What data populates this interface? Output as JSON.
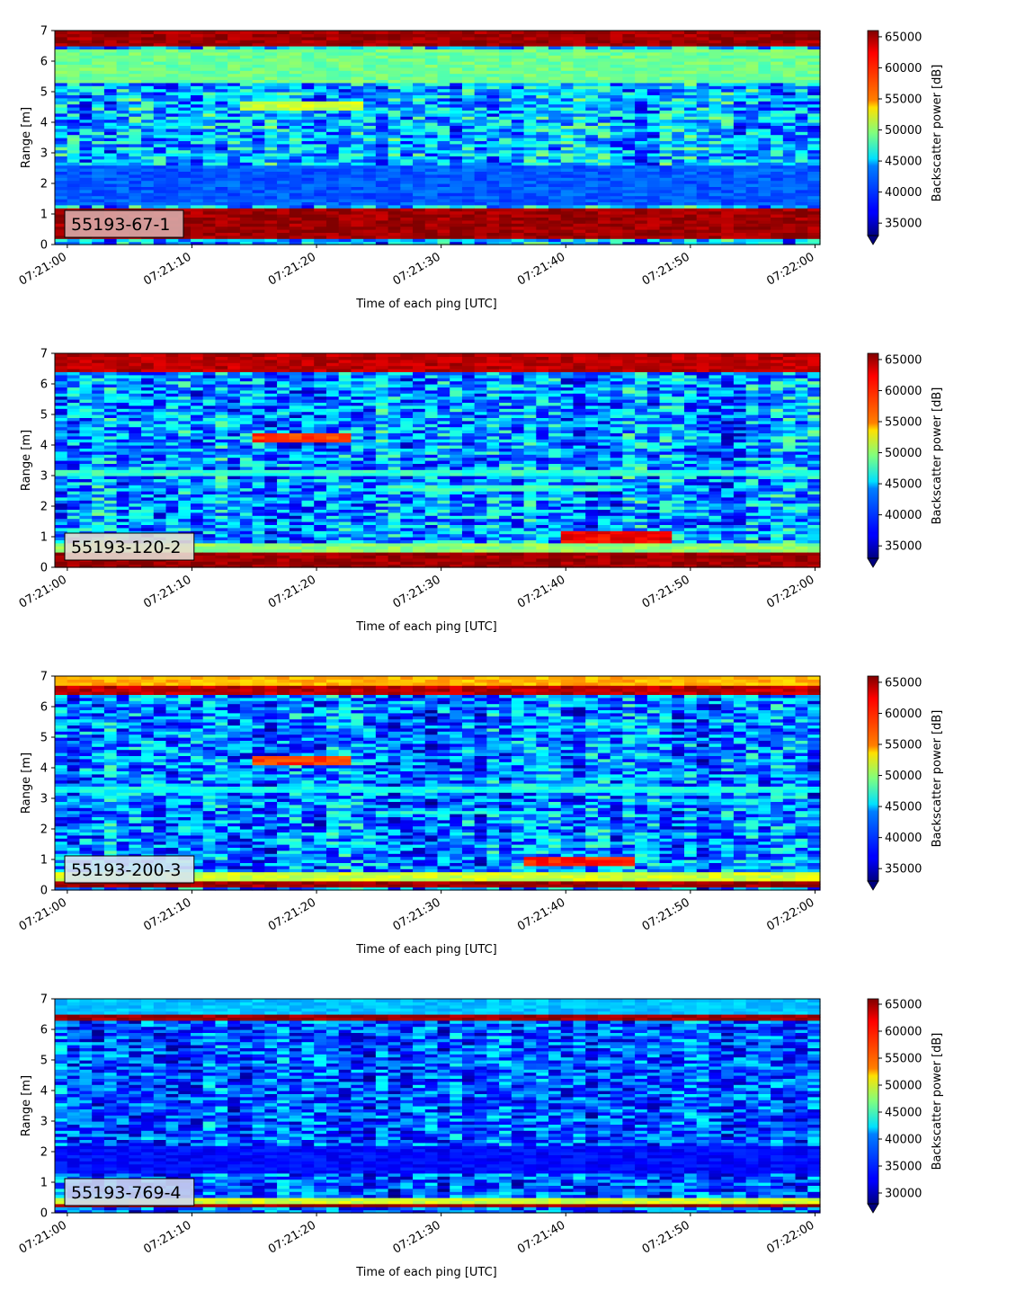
{
  "figure": {
    "xlabel": "Time of each ping [UTC]",
    "ylabel": "Range [m]",
    "colorbar_label": "Backscatter power [dB]",
    "colormap": "jet"
  },
  "chart_data": [
    {
      "type": "heatmap",
      "label": "55193-67-1",
      "label_box_color": "#d9aaa8",
      "x_ticks": [
        "07:21:00",
        "07:21:10",
        "07:21:20",
        "07:21:30",
        "07:21:40",
        "07:21:50",
        "07:22:00"
      ],
      "y_ticks": [
        0,
        1,
        2,
        3,
        4,
        5,
        6,
        7
      ],
      "xlabel": "Time of each ping [UTC]",
      "ylabel": "Range [m]",
      "ylim": [
        0,
        7
      ],
      "colorbar": {
        "label": "Backscatter power [dB]",
        "range": [
          33000,
          66000
        ],
        "ticks": [
          35000,
          40000,
          45000,
          50000,
          55000,
          60000,
          65000
        ]
      },
      "bands": [
        {
          "range_m": [
            0.2,
            1.15
          ],
          "level": 65000
        },
        {
          "range_m": [
            6.5,
            7.0
          ],
          "level": 65000
        },
        {
          "range_m": [
            5.3,
            6.4
          ],
          "level": 49000
        },
        {
          "range_m": [
            4.4,
            4.7
          ],
          "level": 52000,
          "time_s": [
            14,
            24
          ]
        },
        {
          "range_m": [
            1.3,
            2.6
          ],
          "level": 40000
        }
      ],
      "background_level": 43000
    },
    {
      "type": "heatmap",
      "label": "55193-120-2",
      "label_box_color": "#e6dcd2",
      "x_ticks": [
        "07:21:00",
        "07:21:10",
        "07:21:20",
        "07:21:30",
        "07:21:40",
        "07:21:50",
        "07:22:00"
      ],
      "y_ticks": [
        0,
        1,
        2,
        3,
        4,
        5,
        6,
        7
      ],
      "xlabel": "Time of each ping [UTC]",
      "ylabel": "Range [m]",
      "ylim": [
        0,
        7
      ],
      "colorbar": {
        "label": "Backscatter power [dB]",
        "range": [
          33000,
          66000
        ],
        "ticks": [
          35000,
          40000,
          45000,
          50000,
          55000,
          60000,
          65000
        ]
      },
      "bands": [
        {
          "range_m": [
            0.0,
            0.45
          ],
          "level": 65000
        },
        {
          "range_m": [
            0.45,
            0.8
          ],
          "level": 50000
        },
        {
          "range_m": [
            6.4,
            7.0
          ],
          "level": 64000
        },
        {
          "range_m": [
            4.15,
            4.35
          ],
          "level": 60000,
          "time_s": [
            15,
            23
          ]
        },
        {
          "range_m": [
            3.0,
            3.15
          ],
          "level": 47000
        },
        {
          "range_m": [
            2.5,
            2.65
          ],
          "level": 47000,
          "time_s": [
            25,
            45
          ]
        },
        {
          "range_m": [
            0.85,
            1.15
          ],
          "level": 62000,
          "time_s": [
            40,
            49
          ]
        }
      ],
      "background_level": 42000
    },
    {
      "type": "heatmap",
      "label": "55193-200-3",
      "label_box_color": "#d8e6f2",
      "x_ticks": [
        "07:21:00",
        "07:21:10",
        "07:21:20",
        "07:21:30",
        "07:21:40",
        "07:21:50",
        "07:22:00"
      ],
      "y_ticks": [
        0,
        1,
        2,
        3,
        4,
        5,
        6,
        7
      ],
      "xlabel": "Time of each ping [UTC]",
      "ylabel": "Range [m]",
      "ylim": [
        0,
        7
      ],
      "colorbar": {
        "label": "Backscatter power [dB]",
        "range": [
          33000,
          66000
        ],
        "ticks": [
          35000,
          40000,
          45000,
          50000,
          55000,
          60000,
          65000
        ]
      },
      "bands": [
        {
          "range_m": [
            0.15,
            0.35
          ],
          "level": 65000
        },
        {
          "range_m": [
            0.35,
            0.55
          ],
          "level": 52000
        },
        {
          "range_m": [
            6.4,
            6.75
          ],
          "level": 64000
        },
        {
          "range_m": [
            6.75,
            7.0
          ],
          "level": 56000
        },
        {
          "range_m": [
            4.15,
            4.35
          ],
          "level": 60000,
          "time_s": [
            15,
            23
          ]
        },
        {
          "range_m": [
            3.25,
            3.4
          ],
          "level": 46000
        },
        {
          "range_m": [
            2.5,
            2.6
          ],
          "level": 46000,
          "time_s": [
            25,
            40
          ]
        },
        {
          "range_m": [
            0.8,
            1.05
          ],
          "level": 61000,
          "time_s": [
            37,
            46
          ]
        }
      ],
      "background_level": 41000
    },
    {
      "type": "heatmap",
      "label": "55193-769-4",
      "label_box_color": "#ccd6ef",
      "x_ticks": [
        "07:21:00",
        "07:21:10",
        "07:21:20",
        "07:21:30",
        "07:21:40",
        "07:21:50",
        "07:22:00"
      ],
      "y_ticks": [
        0,
        1,
        2,
        3,
        4,
        5,
        6,
        7
      ],
      "xlabel": "Time of each ping [UTC]",
      "ylabel": "Range [m]",
      "ylim": [
        0,
        7
      ],
      "colorbar": {
        "label": "Backscatter power [dB]",
        "range": [
          28000,
          66000
        ],
        "ticks": [
          30000,
          35000,
          40000,
          45000,
          50000,
          55000,
          60000,
          65000
        ]
      },
      "bands": [
        {
          "range_m": [
            0.2,
            0.35
          ],
          "level": 65000
        },
        {
          "range_m": [
            0.35,
            0.5
          ],
          "level": 50000
        },
        {
          "range_m": [
            6.35,
            6.55
          ],
          "level": 65000
        },
        {
          "range_m": [
            6.55,
            7.0
          ],
          "level": 40000
        },
        {
          "range_m": [
            1.3,
            2.2
          ],
          "level": 33000
        }
      ],
      "background_level": 36000
    }
  ]
}
